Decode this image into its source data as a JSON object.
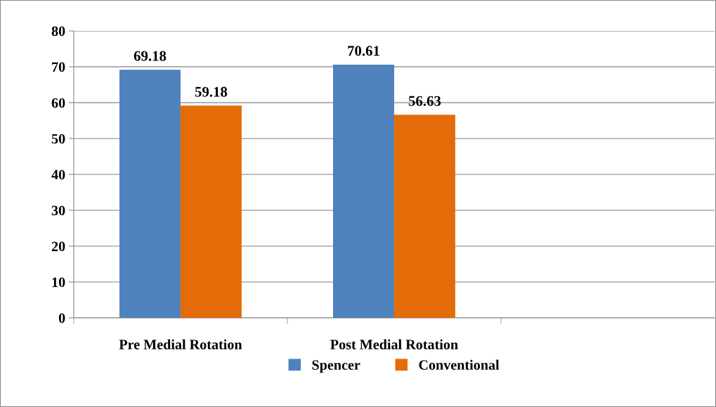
{
  "chart_data": {
    "type": "bar",
    "categories": [
      "Pre Medial Rotation",
      "Post Medial Rotation",
      null
    ],
    "series": [
      {
        "name": "Spencer",
        "color": "#4f81bd",
        "values": [
          69.18,
          70.61,
          null
        ]
      },
      {
        "name": "Conventional",
        "color": "#e36c09",
        "values": [
          59.18,
          56.63,
          null
        ]
      }
    ],
    "ylim": [
      0,
      80
    ],
    "yticks": [
      0,
      10,
      20,
      30,
      40,
      50,
      60,
      70,
      80
    ],
    "grid": "y",
    "legend": "bottom",
    "data_labels": true
  }
}
